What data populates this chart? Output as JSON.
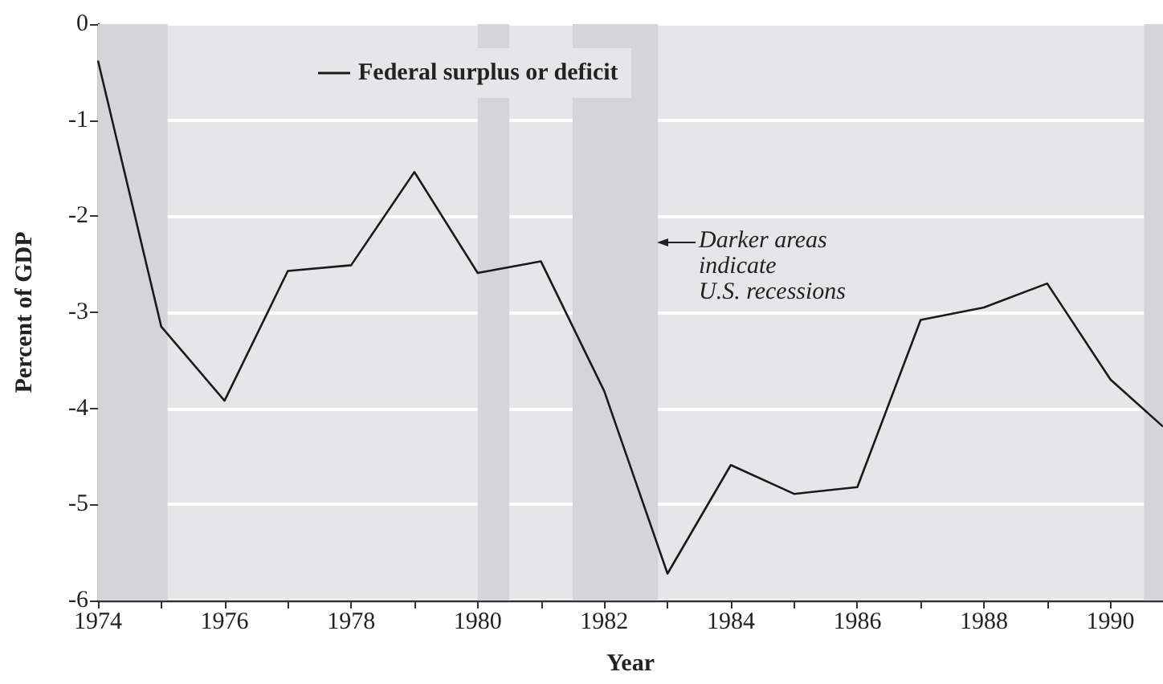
{
  "chart_data": {
    "type": "line",
    "xlabel": "Year",
    "ylabel": "Percent of GDP",
    "x": [
      1974,
      1975,
      1976,
      1977,
      1978,
      1979,
      1980,
      1981,
      1982,
      1983,
      1984,
      1985,
      1986,
      1987,
      1988,
      1989,
      1990,
      1990.83
    ],
    "series": [
      {
        "name": "Federal surplus or deficit",
        "color": "#1a1a1a",
        "values": [
          -0.38,
          -3.15,
          -3.92,
          -2.57,
          -2.51,
          -1.54,
          -2.59,
          -2.47,
          -3.82,
          -5.72,
          -4.59,
          -4.89,
          -4.82,
          -3.08,
          -2.95,
          -2.7,
          -3.7,
          -4.19
        ]
      }
    ],
    "xlim": [
      1974,
      1990.83
    ],
    "xticks": [
      1974,
      {
        "value": 1975,
        "label": null
      },
      1976,
      {
        "value": 1977,
        "label": null
      },
      1978,
      {
        "value": 1979,
        "label": null
      },
      1980,
      {
        "value": 1981,
        "label": null
      },
      1982,
      {
        "value": 1983,
        "label": null
      },
      1984,
      {
        "value": 1985,
        "label": null
      },
      1986,
      {
        "value": 1987,
        "label": null
      },
      1988,
      {
        "value": 1989,
        "label": null
      },
      1990
    ],
    "ylim": [
      -6,
      0
    ],
    "yticks": [
      -6,
      -5,
      -4,
      -3,
      -2,
      -1,
      0
    ],
    "bands": [
      {
        "axis": "x",
        "from": 1974,
        "to": 1975.1,
        "color": "#d5d5d9"
      },
      {
        "axis": "x",
        "from": 1980,
        "to": 1980.5,
        "color": "#d5d5d9"
      },
      {
        "axis": "x",
        "from": 1981.5,
        "to": 1982.85,
        "color": "#d5d5d9"
      },
      {
        "axis": "x",
        "from": 1990.53,
        "to": 1990.83,
        "color": "#d5d5d9"
      }
    ],
    "annotations": [
      "Darker areas\nindicate\nU.S. recessions"
    ],
    "grid": "y",
    "legend": "top left",
    "marker": "none",
    "line_style": "solid"
  }
}
